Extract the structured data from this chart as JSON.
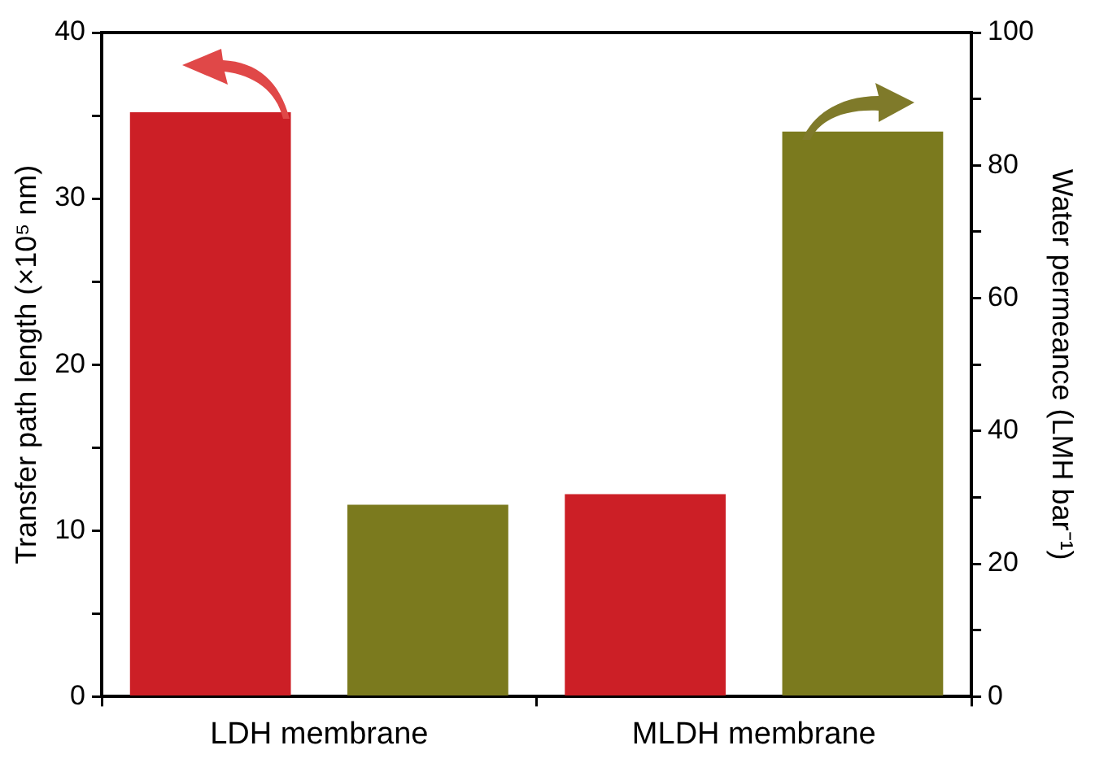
{
  "chart_data": {
    "type": "bar",
    "categories": [
      "LDH membrane",
      "MLDH membrane"
    ],
    "ylabel": "Transfer path length (×10⁵ nm)",
    "y2label": "Water permeance (LMH bar⁻¹)",
    "series": [
      {
        "color": "#cc1f26",
        "values": [
          35.2,
          12.2
        ]
      },
      {
        "color": "#7b7a1e",
        "values": [
          28.9,
          85.1
        ],
        "axis": "y2"
      }
    ],
    "ylim": [
      0,
      40
    ],
    "yticks": [
      0,
      {
        "value": 5,
        "label": null
      },
      10,
      {
        "value": 15,
        "label": null
      },
      20,
      {
        "value": 25,
        "label": null
      },
      30,
      {
        "value": 35,
        "label": null
      },
      40
    ],
    "y2lim": [
      0,
      100
    ],
    "y2ticks": [
      0,
      {
        "value": 10,
        "label": null
      },
      20,
      {
        "value": 30,
        "label": null
      },
      40,
      {
        "value": 50,
        "label": null
      },
      60,
      {
        "value": 70,
        "label": null
      },
      80,
      {
        "value": 90,
        "label": null
      },
      100
    ],
    "grid": false,
    "legend": false
  }
}
